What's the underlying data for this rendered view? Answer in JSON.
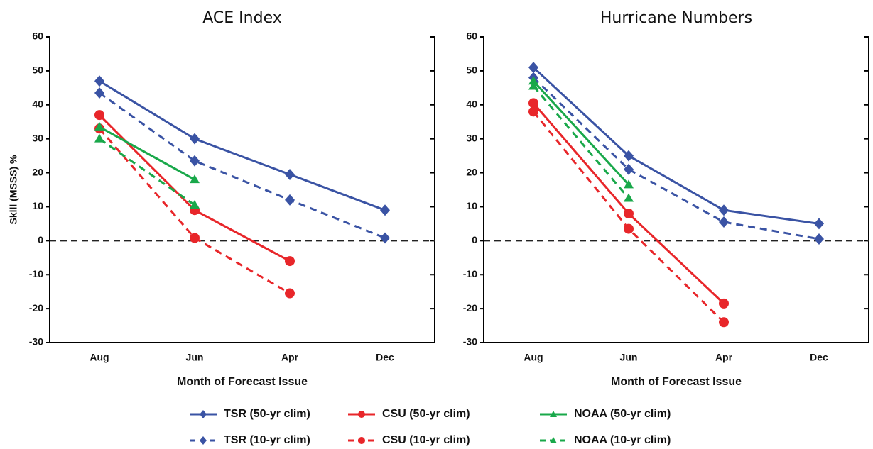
{
  "chart_data": [
    {
      "type": "line",
      "title": "ACE Index",
      "ylabel": "Skill (MSSS) %",
      "xlabel": "Month of Forecast Issue",
      "categories": [
        "Aug",
        "Jun",
        "Apr",
        "Dec"
      ],
      "ylim": [
        -30,
        60
      ],
      "yticks": [
        -30,
        -20,
        -10,
        0,
        10,
        20,
        30,
        40,
        50,
        60
      ],
      "series": [
        {
          "name": "TSR (50-yr clim)",
          "color": "#3a53a4",
          "linestyle": "solid",
          "marker": "diamond",
          "values": [
            47,
            30,
            19.5,
            9
          ]
        },
        {
          "name": "TSR (10-yr clim)",
          "color": "#3a53a4",
          "linestyle": "dashed",
          "marker": "diamond",
          "values": [
            43.5,
            23.5,
            12,
            0.8
          ]
        },
        {
          "name": "CSU (50-yr clim)",
          "color": "#e8262a",
          "linestyle": "solid",
          "marker": "circle",
          "values": [
            37,
            9,
            -6,
            null
          ]
        },
        {
          "name": "CSU (10-yr clim)",
          "color": "#e8262a",
          "linestyle": "dashed",
          "marker": "circle",
          "values": [
            33,
            0.8,
            -15.5,
            null
          ]
        },
        {
          "name": "NOAA (50-yr clim)",
          "color": "#19a84a",
          "linestyle": "solid",
          "marker": "triangle",
          "values": [
            33.5,
            18,
            null,
            null
          ]
        },
        {
          "name": "NOAA (10-yr clim)",
          "color": "#19a84a",
          "linestyle": "dashed",
          "marker": "triangle",
          "values": [
            30,
            10.5,
            null,
            null
          ]
        }
      ]
    },
    {
      "type": "line",
      "title": "Hurricane Numbers",
      "xlabel": "Month of Forecast Issue",
      "categories": [
        "Aug",
        "Jun",
        "Apr",
        "Dec"
      ],
      "ylim": [
        -30,
        60
      ],
      "yticks": [
        -30,
        -20,
        -10,
        0,
        10,
        20,
        30,
        40,
        50,
        60
      ],
      "series": [
        {
          "name": "TSR (50-yr clim)",
          "color": "#3a53a4",
          "linestyle": "solid",
          "marker": "diamond",
          "values": [
            51,
            25,
            9,
            5
          ]
        },
        {
          "name": "TSR (10-yr clim)",
          "color": "#3a53a4",
          "linestyle": "dashed",
          "marker": "diamond",
          "values": [
            48,
            21,
            5.5,
            0.5
          ]
        },
        {
          "name": "CSU (50-yr clim)",
          "color": "#e8262a",
          "linestyle": "solid",
          "marker": "circle",
          "values": [
            40.5,
            8,
            -18.5,
            null
          ]
        },
        {
          "name": "CSU (10-yr clim)",
          "color": "#e8262a",
          "linestyle": "dashed",
          "marker": "circle",
          "values": [
            38,
            3.5,
            -24,
            null
          ]
        },
        {
          "name": "NOAA (50-yr clim)",
          "color": "#19a84a",
          "linestyle": "solid",
          "marker": "triangle",
          "values": [
            47,
            16.5,
            null,
            null
          ]
        },
        {
          "name": "NOAA (10-yr clim)",
          "color": "#19a84a",
          "linestyle": "dashed",
          "marker": "triangle",
          "values": [
            45.5,
            12.5,
            null,
            null
          ]
        }
      ]
    }
  ]
}
